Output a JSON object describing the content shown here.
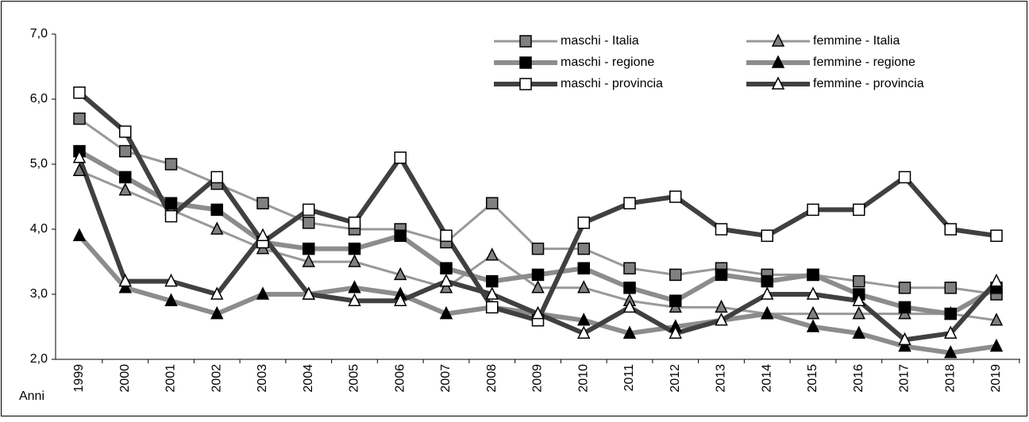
{
  "chart_data": {
    "type": "line",
    "x_label": "Anni",
    "categories": [
      "1999",
      "2000",
      "2001",
      "2002",
      "2003",
      "2004",
      "2005",
      "2006",
      "2007",
      "2008",
      "2009",
      "2010",
      "2011",
      "2012",
      "2013",
      "2014",
      "2015",
      "2016",
      "2017",
      "2018",
      "2019"
    ],
    "ylim": [
      2,
      7
    ],
    "yticks": [
      {
        "value": 2,
        "label": "2,0"
      },
      {
        "value": 3,
        "label": "3,0"
      },
      {
        "value": 4,
        "label": "4,0"
      },
      {
        "value": 5,
        "label": "5,0"
      },
      {
        "value": 6,
        "label": "6,0"
      },
      {
        "value": 7,
        "label": "7,0"
      }
    ],
    "series": [
      {
        "name": "maschi - Italia",
        "color": "#999999",
        "line_width": 3,
        "marker": "square",
        "marker_fill": "#808080",
        "values": [
          5.7,
          5.2,
          5.0,
          4.7,
          4.4,
          4.1,
          4.0,
          4.0,
          3.8,
          4.4,
          3.7,
          3.7,
          3.4,
          3.3,
          3.4,
          3.3,
          3.3,
          3.2,
          3.1,
          3.1,
          3.0
        ]
      },
      {
        "name": "femmine - Italia",
        "color": "#999999",
        "line_width": 3,
        "marker": "triangle",
        "marker_fill": "#808080",
        "values": [
          4.9,
          4.6,
          4.3,
          4.0,
          3.7,
          3.5,
          3.5,
          3.3,
          3.1,
          3.6,
          3.1,
          3.1,
          2.9,
          2.8,
          2.8,
          2.7,
          2.7,
          2.7,
          2.7,
          2.7,
          2.6
        ]
      },
      {
        "name": "maschi - regione",
        "color": "#8c8c8c",
        "line_width": 6,
        "marker": "square",
        "marker_fill": "#000000",
        "values": [
          5.2,
          4.8,
          4.4,
          4.3,
          3.8,
          3.7,
          3.7,
          3.9,
          3.4,
          3.2,
          3.3,
          3.4,
          3.1,
          2.9,
          3.3,
          3.2,
          3.3,
          3.0,
          2.8,
          2.7,
          3.1
        ]
      },
      {
        "name": "femmine - regione",
        "color": "#8c8c8c",
        "line_width": 6,
        "marker": "triangle",
        "marker_fill": "#000000",
        "values": [
          3.9,
          3.1,
          2.9,
          2.7,
          3.0,
          3.0,
          3.1,
          3.0,
          2.7,
          2.8,
          2.7,
          2.6,
          2.4,
          2.5,
          2.6,
          2.7,
          2.5,
          2.4,
          2.2,
          2.1,
          2.2
        ]
      },
      {
        "name": "maschi - provincia",
        "color": "#404040",
        "line_width": 6,
        "marker": "square",
        "marker_fill": "#ffffff",
        "values": [
          6.1,
          5.5,
          4.2,
          4.8,
          3.8,
          4.3,
          4.1,
          5.1,
          3.9,
          2.8,
          2.6,
          4.1,
          4.4,
          4.5,
          4.0,
          3.9,
          4.3,
          4.3,
          4.8,
          4.0,
          3.9
        ]
      },
      {
        "name": "femmine - provincia",
        "color": "#404040",
        "line_width": 6,
        "marker": "triangle",
        "marker_fill": "#ffffff",
        "values": [
          5.1,
          3.2,
          3.2,
          3.0,
          3.9,
          3.0,
          2.9,
          2.9,
          3.2,
          3.0,
          2.7,
          2.4,
          2.8,
          2.4,
          2.6,
          3.0,
          3.0,
          2.9,
          2.3,
          2.4,
          3.2
        ]
      }
    ]
  }
}
